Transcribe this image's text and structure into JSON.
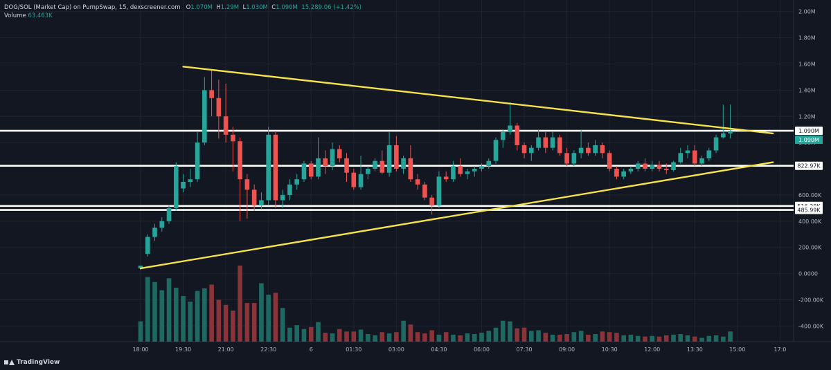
{
  "legend": {
    "symbol": "DOG/SOL (Market Cap) on PumpSwap, 15, dexscreener.com",
    "open_label": "O",
    "open": "1.070M",
    "high_label": "H",
    "high": "1.29M",
    "low_label": "L",
    "low": "1.030M",
    "close_label": "C",
    "close": "1.090M",
    "change": "15,289.06 (+1.42%)",
    "volume_label": "Volume",
    "volume": "63.463K"
  },
  "branding": {
    "logo_text": "TradingView"
  },
  "colors": {
    "background": "#131722",
    "up": "#26a69a",
    "down": "#ef5350",
    "volume_up": "#1e6a62",
    "volume_down": "#8a3338",
    "trendline": "#f6e24a",
    "level": "#ffffff",
    "current_badge": "#26a69a"
  },
  "chart_data": {
    "type": "candlestick",
    "y_axis": {
      "ticks": [
        2000000,
        1800000,
        1600000,
        1400000,
        1200000,
        1000000,
        600000,
        400000,
        200000,
        0,
        -200000,
        -400000
      ],
      "tick_labels": [
        "2.00M",
        "1.80M",
        "1.60M",
        "1.40M",
        "1.20M",
        "1.00M",
        "600.00K",
        "400.00K",
        "200.00K",
        "0.0000",
        "-200.00K",
        "-400.00K"
      ],
      "range": [
        -500000,
        2000000
      ]
    },
    "x_axis": {
      "tick_labels": [
        "18:00",
        "19:30",
        "21:00",
        "22:30",
        "6",
        "01:30",
        "03:00",
        "04:30",
        "06:00",
        "07:30",
        "09:00",
        "10:30",
        "12:00",
        "13:30",
        "15:00",
        "17:0"
      ],
      "tick_bar_index": [
        0,
        6,
        12,
        18,
        24,
        30,
        36,
        42,
        48,
        54,
        60,
        66,
        72,
        78,
        84,
        90
      ]
    },
    "candles": [
      [
        0,
        40000,
        60000,
        28000,
        60000
      ],
      [
        1,
        150000,
        300000,
        130000,
        280000
      ],
      [
        2,
        280000,
        380000,
        250000,
        350000
      ],
      [
        3,
        350000,
        430000,
        320000,
        400000
      ],
      [
        4,
        400000,
        520000,
        380000,
        500000
      ],
      [
        5,
        500000,
        850000,
        480000,
        820000
      ],
      [
        6,
        650000,
        760000,
        620000,
        700000
      ],
      [
        7,
        700000,
        800000,
        660000,
        720000
      ],
      [
        8,
        720000,
        1080000,
        700000,
        1000000
      ],
      [
        9,
        1000000,
        1500000,
        980000,
        1400000
      ],
      [
        10,
        1400000,
        1560000,
        1200000,
        1340000
      ],
      [
        11,
        1340000,
        1480000,
        1030000,
        1200000
      ],
      [
        12,
        1200000,
        1450000,
        1000000,
        1060000
      ],
      [
        13,
        1060000,
        1120000,
        780000,
        1010000
      ],
      [
        14,
        1010000,
        1040000,
        400000,
        720000
      ],
      [
        15,
        720000,
        760000,
        420000,
        640000
      ],
      [
        16,
        640000,
        680000,
        480000,
        520000
      ],
      [
        17,
        520000,
        620000,
        490000,
        560000
      ],
      [
        18,
        560000,
        1120000,
        520000,
        1060000
      ],
      [
        19,
        1060000,
        1090000,
        500000,
        560000
      ],
      [
        20,
        560000,
        640000,
        500000,
        600000
      ],
      [
        21,
        600000,
        720000,
        560000,
        680000
      ],
      [
        22,
        680000,
        760000,
        640000,
        720000
      ],
      [
        23,
        720000,
        860000,
        700000,
        840000
      ],
      [
        24,
        840000,
        860000,
        720000,
        740000
      ],
      [
        25,
        740000,
        1040000,
        720000,
        880000
      ],
      [
        26,
        880000,
        940000,
        760000,
        820000
      ],
      [
        27,
        820000,
        1000000,
        790000,
        950000
      ],
      [
        28,
        950000,
        980000,
        850000,
        880000
      ],
      [
        29,
        880000,
        920000,
        700000,
        770000
      ],
      [
        30,
        770000,
        800000,
        640000,
        660000
      ],
      [
        31,
        660000,
        900000,
        640000,
        760000
      ],
      [
        32,
        760000,
        820000,
        720000,
        800000
      ],
      [
        33,
        800000,
        880000,
        780000,
        860000
      ],
      [
        34,
        860000,
        940000,
        760000,
        770000
      ],
      [
        35,
        770000,
        1080000,
        740000,
        980000
      ],
      [
        36,
        980000,
        1050000,
        780000,
        800000
      ],
      [
        37,
        800000,
        900000,
        760000,
        880000
      ],
      [
        38,
        880000,
        980000,
        700000,
        720000
      ],
      [
        39,
        720000,
        760000,
        640000,
        680000
      ],
      [
        40,
        680000,
        700000,
        560000,
        580000
      ],
      [
        41,
        580000,
        600000,
        450000,
        520000
      ],
      [
        42,
        520000,
        780000,
        500000,
        740000
      ],
      [
        43,
        740000,
        780000,
        700000,
        720000
      ],
      [
        44,
        720000,
        860000,
        700000,
        820000
      ],
      [
        45,
        820000,
        880000,
        740000,
        760000
      ],
      [
        46,
        760000,
        800000,
        720000,
        780000
      ],
      [
        47,
        780000,
        820000,
        740000,
        800000
      ],
      [
        48,
        800000,
        840000,
        780000,
        820000
      ],
      [
        49,
        820000,
        880000,
        800000,
        860000
      ],
      [
        50,
        860000,
        1040000,
        840000,
        1020000
      ],
      [
        51,
        1020000,
        1100000,
        960000,
        1080000
      ],
      [
        52,
        1080000,
        1310000,
        1060000,
        1130000
      ],
      [
        53,
        1130000,
        1150000,
        940000,
        980000
      ],
      [
        54,
        980000,
        1000000,
        880000,
        920000
      ],
      [
        55,
        920000,
        980000,
        860000,
        960000
      ],
      [
        56,
        960000,
        1100000,
        940000,
        1040000
      ],
      [
        57,
        1040000,
        1080000,
        920000,
        960000
      ],
      [
        58,
        960000,
        1080000,
        940000,
        1040000
      ],
      [
        59,
        1040000,
        1060000,
        900000,
        920000
      ],
      [
        60,
        920000,
        960000,
        820000,
        840000
      ],
      [
        61,
        840000,
        940000,
        820000,
        920000
      ],
      [
        62,
        920000,
        1100000,
        880000,
        960000
      ],
      [
        63,
        960000,
        1000000,
        900000,
        920000
      ],
      [
        64,
        920000,
        1020000,
        900000,
        980000
      ],
      [
        65,
        980000,
        1000000,
        880000,
        920000
      ],
      [
        66,
        920000,
        940000,
        780000,
        800000
      ],
      [
        67,
        800000,
        820000,
        720000,
        740000
      ],
      [
        68,
        740000,
        800000,
        720000,
        780000
      ],
      [
        69,
        780000,
        820000,
        760000,
        800000
      ],
      [
        70,
        800000,
        860000,
        780000,
        840000
      ],
      [
        71,
        840000,
        880000,
        780000,
        800000
      ],
      [
        72,
        800000,
        860000,
        780000,
        830000
      ],
      [
        73,
        830000,
        860000,
        780000,
        800000
      ],
      [
        74,
        800000,
        840000,
        760000,
        790000
      ],
      [
        75,
        790000,
        860000,
        780000,
        850000
      ],
      [
        76,
        850000,
        960000,
        840000,
        920000
      ],
      [
        77,
        920000,
        980000,
        880000,
        940000
      ],
      [
        78,
        940000,
        980000,
        820000,
        840000
      ],
      [
        79,
        840000,
        900000,
        820000,
        880000
      ],
      [
        80,
        880000,
        960000,
        860000,
        940000
      ],
      [
        81,
        940000,
        1060000,
        920000,
        1040000
      ],
      [
        82,
        1040000,
        1290000,
        1030000,
        1070000
      ],
      [
        83,
        1070000,
        1290000,
        1030000,
        1090000
      ]
    ],
    "volume_range": [
      0,
      12
    ],
    "volumes": [
      3.2,
      10.2,
      9.4,
      8.1,
      10.0,
      8.5,
      7.2,
      6.3,
      8.0,
      8.4,
      9.0,
      6.6,
      5.8,
      4.9,
      12.0,
      6.1,
      6.1,
      9.2,
      7.4,
      7.7,
      5.3,
      2.2,
      2.6,
      2.0,
      2.3,
      3.1,
      1.4,
      1.3,
      2.0,
      1.6,
      1.6,
      1.9,
      1.2,
      1.0,
      1.5,
      1.3,
      1.5,
      3.3,
      2.7,
      1.5,
      1.3,
      1.8,
      1.1,
      1.5,
      1.1,
      1.0,
      1.3,
      1.2,
      1.4,
      1.7,
      2.2,
      3.3,
      3.2,
      2.1,
      2.2,
      1.7,
      1.8,
      1.4,
      1.1,
      1.1,
      1.2,
      1.5,
      1.7,
      1.1,
      1.2,
      1.6,
      1.5,
      1.4,
      1.0,
      1.1,
      0.9,
      0.8,
      0.9,
      0.8,
      1.0,
      1.1,
      1.2,
      1.0,
      0.8,
      0.6,
      0.9,
      1.0,
      0.8,
      1.6
    ],
    "trendlines": [
      {
        "from": [
          6,
          1580000
        ],
        "to": [
          89,
          1070000
        ]
      },
      {
        "from": [
          0,
          40000
        ],
        "to": [
          89,
          850000
        ]
      }
    ],
    "levels": [
      {
        "value": 1090000,
        "label": "1.090M"
      },
      {
        "value": 822970,
        "label": "822.97K"
      },
      {
        "value": 516280,
        "label": "516.28K"
      },
      {
        "value": 485990,
        "label": "485.99K"
      }
    ],
    "current_price": {
      "value": 1090000,
      "label": "1.090M"
    }
  }
}
